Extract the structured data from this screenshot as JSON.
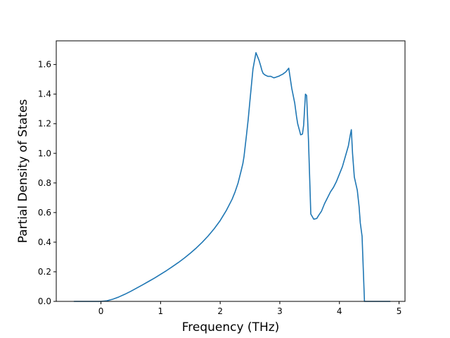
{
  "chart_data": {
    "type": "line",
    "title": "",
    "xlabel": "Frequency (THz)",
    "ylabel": "Partial Density of States",
    "xlim": [
      -0.75,
      5.1
    ],
    "ylim": [
      0.0,
      1.76
    ],
    "xticks": [
      0,
      1,
      2,
      3,
      4,
      5
    ],
    "xtick_labels": [
      "0",
      "1",
      "2",
      "3",
      "4",
      "5"
    ],
    "yticks": [
      0.0,
      0.2,
      0.4,
      0.6,
      0.8,
      1.0,
      1.2,
      1.4,
      1.6
    ],
    "ytick_labels": [
      "0.0",
      "0.2",
      "0.4",
      "0.6",
      "0.8",
      "1.0",
      "1.2",
      "1.4",
      "1.6"
    ],
    "grid": false,
    "legend": "none",
    "series": [
      {
        "color": "#1f77b4",
        "x": [
          -0.45,
          -0.2,
          0.0,
          0.1,
          0.2,
          0.3,
          0.4,
          0.5,
          0.6,
          0.7,
          0.8,
          0.9,
          1.0,
          1.1,
          1.2,
          1.3,
          1.4,
          1.5,
          1.6,
          1.7,
          1.8,
          1.9,
          2.0,
          2.1,
          2.2,
          2.25,
          2.3,
          2.35,
          2.38,
          2.4,
          2.42,
          2.44,
          2.47,
          2.5,
          2.55,
          2.6,
          2.65,
          2.68,
          2.7,
          2.72,
          2.75,
          2.8,
          2.85,
          2.9,
          2.94,
          2.97,
          2.98,
          3.0,
          3.05,
          3.1,
          3.15,
          3.2,
          3.25,
          3.28,
          3.3,
          3.32,
          3.34,
          3.35,
          3.38,
          3.4,
          3.43,
          3.45,
          3.48,
          3.52,
          3.57,
          3.62,
          3.65,
          3.7,
          3.75,
          3.8,
          3.85,
          3.9,
          3.95,
          4.0,
          4.05,
          4.1,
          4.15,
          4.18,
          4.2,
          4.22,
          4.25,
          4.3,
          4.33,
          4.35,
          4.38,
          4.42,
          4.5,
          4.7,
          4.85
        ],
        "y": [
          0.0,
          0.0,
          0.0,
          0.004,
          0.015,
          0.03,
          0.048,
          0.068,
          0.09,
          0.112,
          0.135,
          0.158,
          0.183,
          0.208,
          0.235,
          0.263,
          0.293,
          0.326,
          0.361,
          0.4,
          0.443,
          0.491,
          0.546,
          0.612,
          0.69,
          0.74,
          0.8,
          0.88,
          0.93,
          0.98,
          1.05,
          1.12,
          1.23,
          1.36,
          1.57,
          1.68,
          1.63,
          1.59,
          1.56,
          1.54,
          1.53,
          1.52,
          1.52,
          1.51,
          1.515,
          1.52,
          1.52,
          1.525,
          1.535,
          1.55,
          1.575,
          1.44,
          1.34,
          1.25,
          1.2,
          1.17,
          1.14,
          1.125,
          1.13,
          1.19,
          1.4,
          1.39,
          1.1,
          0.59,
          0.555,
          0.56,
          0.58,
          0.61,
          0.66,
          0.7,
          0.74,
          0.77,
          0.81,
          0.86,
          0.91,
          0.98,
          1.05,
          1.12,
          1.16,
          1.0,
          0.84,
          0.75,
          0.64,
          0.53,
          0.44,
          0.0,
          0.0,
          0.0,
          0.0
        ]
      }
    ]
  }
}
